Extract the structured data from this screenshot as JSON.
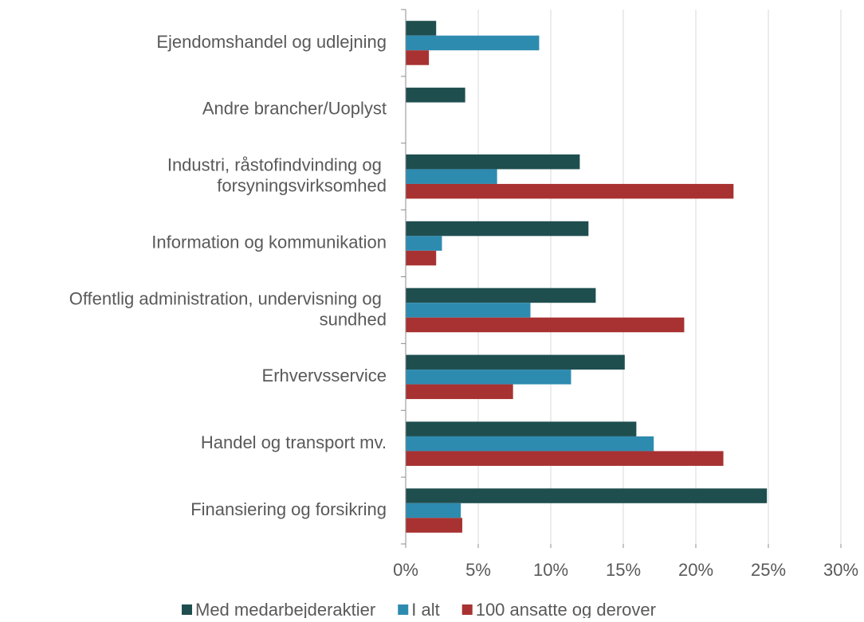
{
  "chart_data": {
    "type": "hbar",
    "categories": [
      "Ejendomshandel og udlejning",
      "Andre brancher/Uoplyst",
      "Industri, råstofindvinding og forsyningsvirksomhed",
      "Information og kommunikation",
      "Offentlig administration, undervisning og sundhed",
      "Erhvervsservice",
      "Handel og transport mv.",
      "Finansiering og forsikring"
    ],
    "series": [
      {
        "name": "Med medarbejderaktier",
        "color": "#1f4e4f",
        "values": [
          2.1,
          4.1,
          12.0,
          12.6,
          13.1,
          15.1,
          15.9,
          24.9
        ]
      },
      {
        "name": "I alt",
        "color": "#2e8bb0",
        "values": [
          9.2,
          0,
          6.3,
          2.5,
          8.6,
          11.4,
          17.1,
          3.8
        ]
      },
      {
        "name": "100 ansatte og derover",
        "color": "#a83232",
        "values": [
          1.6,
          0,
          22.6,
          2.1,
          19.2,
          7.4,
          21.9,
          3.9
        ]
      }
    ],
    "xlim": [
      0,
      30
    ],
    "xticks": [
      {
        "value": 0,
        "label": "0%"
      },
      {
        "value": 5,
        "label": "5%"
      },
      {
        "value": 10,
        "label": "10%"
      },
      {
        "value": 15,
        "label": "15%"
      },
      {
        "value": 20,
        "label": "20%"
      },
      {
        "value": 25,
        "label": "25%"
      },
      {
        "value": 30,
        "label": "30%"
      }
    ],
    "grid": true,
    "legend": "bottom"
  }
}
